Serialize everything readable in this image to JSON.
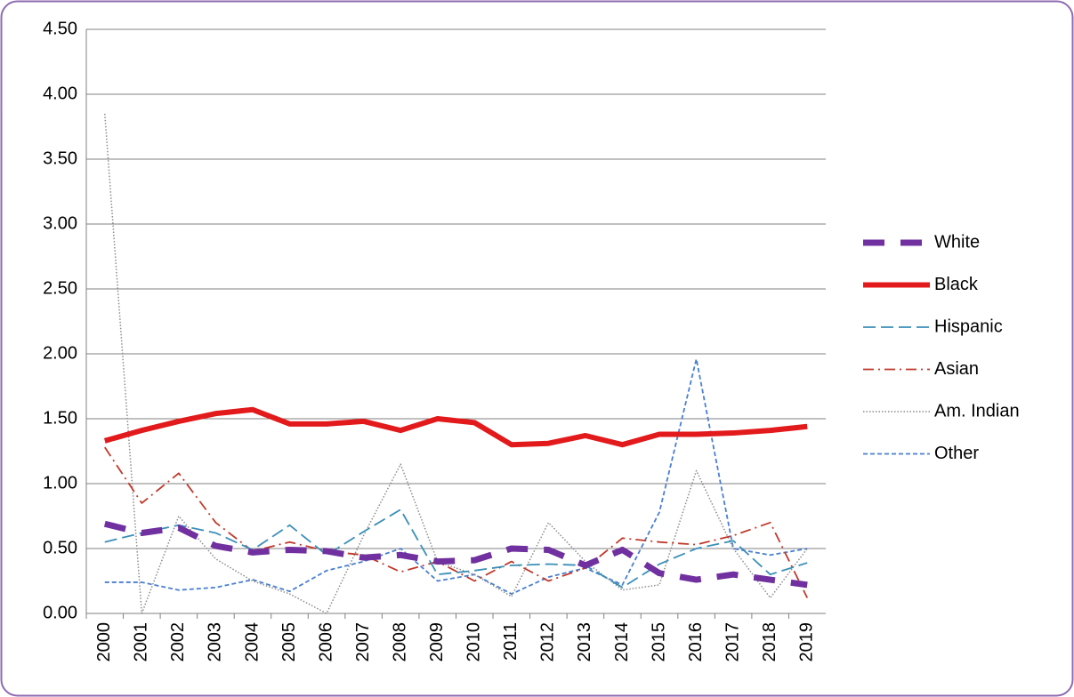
{
  "chart_data": {
    "type": "line",
    "categories": [
      "2000",
      "2001",
      "2002",
      "2003",
      "2004",
      "2005",
      "2006",
      "2007",
      "2008",
      "2009",
      "2010",
      "2011",
      "2012",
      "2013",
      "2014",
      "2015",
      "2016",
      "2017",
      "2018",
      "2019"
    ],
    "ylim": [
      0,
      4.5
    ],
    "yticks": [
      {
        "value": 0,
        "label": "0.00"
      },
      {
        "value": 0.5,
        "label": "0.50"
      },
      {
        "value": 1,
        "label": "1.00"
      },
      {
        "value": 1.5,
        "label": "1.50"
      },
      {
        "value": 2,
        "label": "2.00"
      },
      {
        "value": 2.5,
        "label": "2.50"
      },
      {
        "value": 3,
        "label": "3.00"
      },
      {
        "value": 3.5,
        "label": "3.50"
      },
      {
        "value": 4,
        "label": "4.00"
      },
      {
        "value": 4.5,
        "label": "4.50"
      }
    ],
    "grid": true,
    "legend": "right",
    "series": [
      {
        "name": "White",
        "color": "#7030a0",
        "dash": "heavy-dash",
        "values": [
          0.69,
          0.62,
          0.66,
          0.52,
          0.47,
          0.49,
          0.48,
          0.43,
          0.45,
          0.4,
          0.41,
          0.5,
          0.49,
          0.37,
          0.49,
          0.31,
          0.26,
          0.3,
          0.26,
          0.22
        ]
      },
      {
        "name": "Black",
        "color": "#e31a1c",
        "dash": "solid",
        "values": [
          1.33,
          1.41,
          1.48,
          1.54,
          1.57,
          1.46,
          1.46,
          1.48,
          1.41,
          1.5,
          1.47,
          1.3,
          1.31,
          1.37,
          1.3,
          1.38,
          1.38,
          1.39,
          1.41,
          1.44
        ]
      },
      {
        "name": "Hispanic",
        "color": "#3a8fb7",
        "dash": "long-dash",
        "values": [
          0.55,
          0.62,
          0.68,
          0.62,
          0.49,
          0.68,
          0.45,
          0.63,
          0.8,
          0.3,
          0.33,
          0.37,
          0.38,
          0.37,
          0.2,
          0.38,
          0.5,
          0.56,
          0.3,
          0.39
        ]
      },
      {
        "name": "Asian",
        "color": "#c0392b",
        "dash": "dash-dot",
        "values": [
          1.28,
          0.85,
          1.08,
          0.7,
          0.48,
          0.55,
          0.48,
          0.45,
          0.32,
          0.4,
          0.25,
          0.4,
          0.25,
          0.35,
          0.58,
          0.55,
          0.53,
          0.6,
          0.7,
          0.12
        ]
      },
      {
        "name": "Am. Indian",
        "color": "#8c8c8c",
        "dash": "dot",
        "values": [
          3.85,
          0.0,
          0.75,
          0.42,
          0.25,
          0.15,
          0.0,
          0.6,
          1.15,
          0.4,
          0.3,
          0.13,
          0.7,
          0.4,
          0.18,
          0.22,
          1.1,
          0.5,
          0.12,
          0.5
        ]
      },
      {
        "name": "Other",
        "color": "#4a7fd0",
        "dash": "short-dash",
        "values": [
          0.24,
          0.24,
          0.18,
          0.2,
          0.26,
          0.17,
          0.33,
          0.4,
          0.5,
          0.25,
          0.3,
          0.15,
          0.28,
          0.35,
          0.22,
          0.78,
          1.96,
          0.5,
          0.45,
          0.5
        ]
      }
    ]
  }
}
